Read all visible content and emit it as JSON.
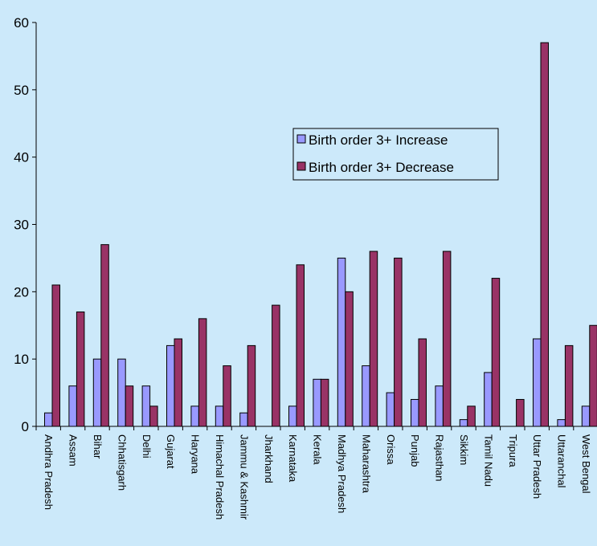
{
  "chart_data": {
    "type": "bar",
    "categories": [
      "Andhra Pradesh",
      "Assam",
      "Bihar",
      "Chhatisgarh",
      "Delhi",
      "Gujarat",
      "Haryana",
      "Himachal Pradesh",
      "Jammu & Kashmir",
      "Jharkhand",
      "Karnataka",
      "Kerala",
      "Madhya Pradesh",
      "Maharashtra",
      "Orissa",
      "Punjab",
      "Rajasthan",
      "Sikkim",
      "Tamil Nadu",
      "Tripura",
      "Uttar Pradesh",
      "Uttaranchal",
      "West Bengal"
    ],
    "series": [
      {
        "name": "Birth order 3+ Increase",
        "color": "#9999ff",
        "values": [
          2,
          6,
          10,
          10,
          6,
          12,
          3,
          3,
          2,
          0,
          3,
          7,
          25,
          9,
          5,
          4,
          6,
          1,
          8,
          0,
          13,
          1,
          3
        ]
      },
      {
        "name": "Birth order 3+ Decrease",
        "color": "#993366",
        "values": [
          21,
          17,
          27,
          6,
          3,
          13,
          16,
          9,
          12,
          18,
          24,
          7,
          20,
          26,
          25,
          13,
          26,
          3,
          22,
          4,
          57,
          12,
          15
        ]
      }
    ],
    "y_ticks": [
      "0",
      "10",
      "20",
      "30",
      "40",
      "50",
      "60"
    ],
    "ylim": [
      0,
      60
    ],
    "grid": false,
    "legend_position": "center-right"
  }
}
